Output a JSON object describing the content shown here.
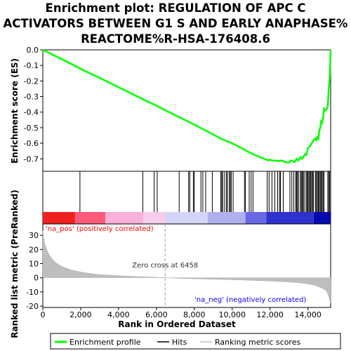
{
  "chart_data": {
    "type": "line",
    "title_lines": [
      "Enrichment plot: REGULATION OF APC C",
      "ACTIVATORS BETWEEN G1 S AND EARLY ANAPHASE%",
      "REACTOME%R-HSA-176408.6"
    ],
    "es_panel": {
      "ylabel": "Enrichment score (ES)",
      "ylim": [
        -0.78,
        0.0
      ],
      "yticks": [
        0.0,
        -0.1,
        -0.2,
        -0.3,
        -0.4,
        -0.5,
        -0.6,
        -0.7
      ],
      "ytick_labels": [
        "0.0",
        "-0.1",
        "-0.2",
        "-0.3",
        "-0.4",
        "-0.5",
        "-0.6",
        "-0.7"
      ],
      "series": [
        {
          "name": "Enrichment profile",
          "color": "#00ff00",
          "x": [
            0,
            1000,
            1980,
            2010,
            3000,
            4000,
            5000,
            5300,
            5350,
            5900,
            6000,
            6050,
            7000,
            7200,
            7700,
            7900,
            8000,
            8400,
            8600,
            9000,
            9400,
            9500,
            9600,
            9700,
            9800,
            9900,
            10000,
            10600,
            10700,
            10900,
            11100,
            11800,
            11900,
            12000,
            12100,
            12300,
            12500,
            12600,
            12800,
            13000,
            13100,
            13200,
            13300,
            13400,
            13500,
            13600,
            13700,
            13800,
            13850,
            13900,
            13950,
            14000,
            14100,
            14200,
            14300,
            14400,
            14450,
            14500,
            14550,
            14600,
            14650,
            14700,
            14750,
            14800,
            14850,
            14900,
            15000,
            15050,
            15100,
            15150,
            15200
          ],
          "y": [
            0.0,
            -0.06,
            -0.12,
            -0.123,
            -0.18,
            -0.24,
            -0.3,
            -0.318,
            -0.322,
            -0.352,
            -0.358,
            -0.362,
            -0.42,
            -0.432,
            -0.462,
            -0.474,
            -0.48,
            -0.506,
            -0.518,
            -0.544,
            -0.57,
            -0.576,
            -0.58,
            -0.586,
            -0.59,
            -0.595,
            -0.6,
            -0.637,
            -0.645,
            -0.658,
            -0.67,
            -0.705,
            -0.71,
            -0.705,
            -0.71,
            -0.712,
            -0.715,
            -0.71,
            -0.72,
            -0.725,
            -0.71,
            -0.715,
            -0.72,
            -0.7,
            -0.71,
            -0.69,
            -0.7,
            -0.68,
            -0.67,
            -0.675,
            -0.66,
            -0.63,
            -0.62,
            -0.6,
            -0.58,
            -0.57,
            -0.58,
            -0.56,
            -0.57,
            -0.52,
            -0.5,
            -0.46,
            -0.47,
            -0.44,
            -0.38,
            -0.39,
            -0.38,
            -0.36,
            -0.25,
            -0.18,
            0.0
          ]
        }
      ]
    },
    "hits_panel": {
      "hit_positions": [
        1960,
        5280,
        5880,
        6040,
        7200,
        7700,
        7760,
        7950,
        8000,
        8350,
        8450,
        8600,
        8950,
        9400,
        9450,
        9500,
        9600,
        9700,
        9750,
        9850,
        9900,
        9950,
        10050,
        10650,
        10700,
        10900,
        11000,
        11100,
        11850,
        11950,
        12100,
        12250,
        12400,
        12500,
        12550,
        12700,
        13050,
        13150,
        13250,
        13350,
        13400,
        13450,
        13500,
        13600,
        13650,
        13700,
        13750,
        13800,
        13900,
        13950,
        14000,
        14050,
        14100,
        14150,
        14200,
        14250,
        14300,
        14400,
        14450,
        14500,
        14550,
        14600,
        14650,
        14700,
        14750,
        14800,
        14850,
        15050,
        15100,
        15150
      ]
    },
    "ranked_panel": {
      "ylabel": "Ranked list metric (PreRanked)",
      "ylim": [
        -21,
        38
      ],
      "yticks": [
        30,
        20,
        10,
        0,
        -10,
        -20
      ],
      "ytick_labels": [
        "30",
        "20",
        "10",
        "0",
        "-10",
        "-20"
      ],
      "x": [
        0,
        50,
        100,
        200,
        300,
        500,
        700,
        1000,
        1500,
        2000,
        2500,
        3000,
        4000,
        5000,
        6000,
        6458,
        7000,
        8000,
        9000,
        10000,
        11000,
        12000,
        13000,
        13500,
        14000,
        14400,
        14700,
        14900,
        15000,
        15100,
        15150,
        15200
      ],
      "values": [
        33,
        28,
        24,
        20,
        17,
        13,
        10.5,
        8,
        5.5,
        4,
        3,
        2.2,
        1.4,
        0.8,
        0.3,
        0.0,
        -0.3,
        -0.7,
        -1.0,
        -1.4,
        -1.8,
        -2.3,
        -3.0,
        -3.5,
        -4.3,
        -5.5,
        -7.0,
        -8.5,
        -10.0,
        -13.0,
        -16.0,
        -18.0
      ],
      "zero_cross_label": "Zero cross at 6458",
      "zero_cross_x": 6458,
      "pos_label": "'na_pos' (positively correlated)",
      "neg_label": "'na_neg' (negatively correlated)",
      "pos_label_color": "#ff0000",
      "neg_label_color": "#0000ff"
    },
    "xaxis": {
      "label": "Rank in Ordered Dataset",
      "xlim": [
        0,
        15200
      ],
      "xticks": [
        0,
        2000,
        4000,
        6000,
        8000,
        10000,
        12000,
        14000
      ],
      "xtick_labels": [
        "0",
        "2,000",
        "4,000",
        "6,000",
        "8,000",
        "10,000",
        "12,000",
        "14,000"
      ]
    },
    "colorbar": {
      "segments": [
        {
          "from": 0,
          "to": 1700,
          "color": "#ee2020"
        },
        {
          "from": 1700,
          "to": 3300,
          "color": "#fa5a7a"
        },
        {
          "from": 3300,
          "to": 5300,
          "color": "#f8b0d8"
        },
        {
          "from": 5300,
          "to": 6458,
          "color": "#f5cdea"
        },
        {
          "from": 6458,
          "to": 8700,
          "color": "#d4d4f6"
        },
        {
          "from": 8700,
          "to": 10700,
          "color": "#b0b0ee"
        },
        {
          "from": 10700,
          "to": 11800,
          "color": "#6868e4"
        },
        {
          "from": 11800,
          "to": 14300,
          "color": "#3030cc"
        },
        {
          "from": 14300,
          "to": 15200,
          "color": "#0808b0"
        }
      ]
    },
    "legend": {
      "placement": "bottom",
      "items": [
        {
          "label": "Enrichment profile",
          "color": "#00ff00",
          "style": "thick-line"
        },
        {
          "label": "Hits",
          "color": "#000000",
          "style": "line"
        },
        {
          "label": "Ranking metric scores",
          "color": "#bebebe",
          "style": "line"
        }
      ]
    },
    "grid": false
  }
}
